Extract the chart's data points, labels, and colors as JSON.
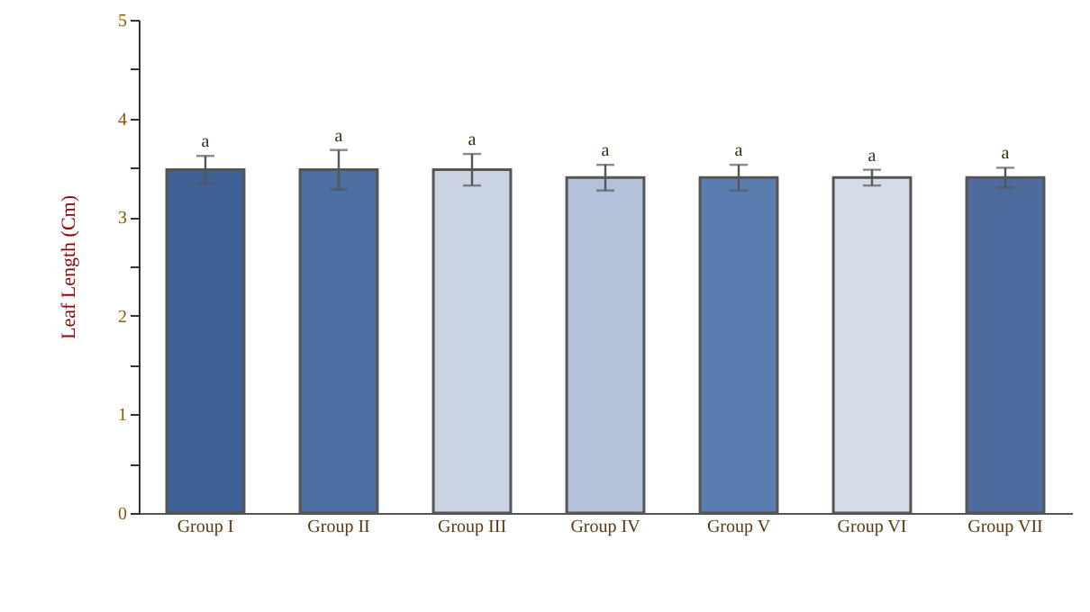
{
  "chart_data": {
    "type": "bar",
    "ylabel": "Leaf Length (Cm)",
    "categories": [
      "Group I",
      "Group II",
      "Group III",
      "Group IV",
      "Group V",
      "Group VI",
      "Group VII"
    ],
    "values": [
      3.48,
      3.48,
      3.48,
      3.4,
      3.4,
      3.4,
      3.4
    ],
    "errors": [
      0.14,
      0.2,
      0.16,
      0.13,
      0.13,
      0.08,
      0.1
    ],
    "colors": [
      "#3d6296",
      "#4a6fa0",
      "#c9d3e3",
      "#b3c2da",
      "#5a7db0",
      "#d4dcea",
      "#4d6b9c"
    ],
    "ylim": [
      0,
      5
    ],
    "yticks": [
      0,
      {
        "value": 0.5,
        "label": null
      },
      1,
      {
        "value": 1.5,
        "label": null
      },
      2,
      {
        "value": 2.5,
        "label": null
      },
      3,
      {
        "value": 3.5,
        "label": null
      },
      4,
      {
        "value": 4.5,
        "label": null
      },
      5
    ],
    "grid": false,
    "annotations": [
      {
        "text": "a",
        "x": "Group I",
        "y": 3.62
      },
      {
        "text": "a",
        "x": "Group II",
        "y": 3.68
      },
      {
        "text": "a",
        "x": "Group III",
        "y": 3.64
      },
      {
        "text": "a",
        "x": "Group IV",
        "y": 3.53
      },
      {
        "text": "a",
        "x": "Group V",
        "y": 3.53
      },
      {
        "text": "a",
        "x": "Group VI",
        "y": 3.48
      },
      {
        "text": "a",
        "x": "Group VII",
        "y": 3.5
      }
    ]
  }
}
